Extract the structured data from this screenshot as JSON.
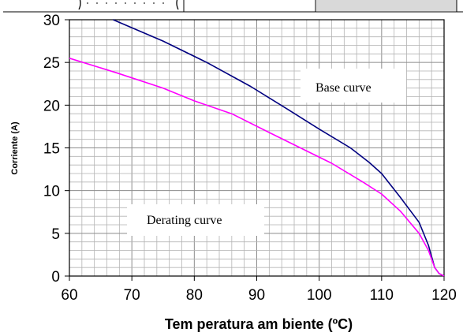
{
  "chart_data": {
    "type": "line",
    "xlabel": "Tem peratura am biente (ºC)",
    "ylabel": "Corriente (A)",
    "xlim": [
      60,
      120
    ],
    "ylim": [
      0,
      30
    ],
    "x_ticks": [
      "60",
      "70",
      "80",
      "90",
      "100",
      "110",
      "120"
    ],
    "y_ticks": [
      "0",
      "5",
      "10",
      "15",
      "20",
      "25",
      "30"
    ],
    "grid": true,
    "annotations": [
      "Base curve",
      "Derating curve"
    ],
    "series": [
      {
        "color": "#000080",
        "x": [
          67,
          75,
          82,
          89,
          95,
          100,
          105,
          108,
          110,
          113,
          116,
          117.5,
          118.5,
          119.2,
          120
        ],
        "y": [
          30,
          27.5,
          25,
          22.2,
          19.5,
          17.2,
          15,
          13.3,
          12,
          9.2,
          6.3,
          3.6,
          1,
          0.3,
          0
        ]
      },
      {
        "color": "#ff00ff",
        "x": [
          60,
          67.5,
          75,
          80,
          86,
          92,
          97,
          102,
          107,
          110,
          113,
          116,
          117.5,
          118.5,
          119.2,
          120
        ],
        "y": [
          25.5,
          23.8,
          22,
          20.5,
          19,
          16.8,
          15,
          13.2,
          11,
          9.6,
          7.6,
          5,
          3,
          1,
          0.3,
          0
        ]
      }
    ]
  }
}
